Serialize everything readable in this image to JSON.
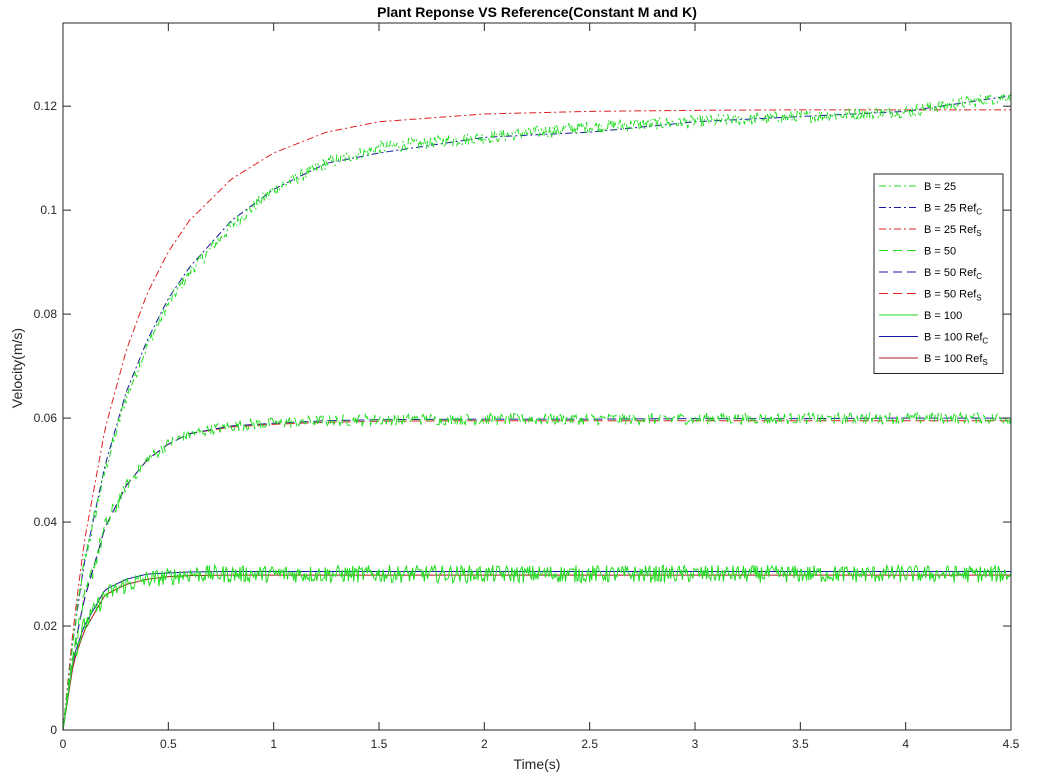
{
  "chart_data": {
    "type": "line",
    "title": "Plant Reponse VS Reference(Constant M and K)",
    "xlabel": "Time(s)",
    "ylabel": "Velocity(m/s)",
    "xlim": [
      0,
      4.5
    ],
    "ylim": [
      0,
      0.136
    ],
    "x_ticks": [
      {
        "value": 0,
        "label": "0"
      },
      {
        "value": 0.5,
        "label": "0.5"
      },
      {
        "value": 1,
        "label": "1"
      },
      {
        "value": 1.5,
        "label": "1.5"
      },
      {
        "value": 2,
        "label": "2"
      },
      {
        "value": 2.5,
        "label": "2.5"
      },
      {
        "value": 3,
        "label": "3"
      },
      {
        "value": 3.5,
        "label": "3.5"
      },
      {
        "value": 4,
        "label": "4"
      },
      {
        "value": 4.5,
        "label": "4.5"
      }
    ],
    "y_ticks": [
      {
        "value": 0,
        "label": "0"
      },
      {
        "value": 0.02,
        "label": "0.02"
      },
      {
        "value": 0.04,
        "label": "0.04"
      },
      {
        "value": 0.06,
        "label": "0.06"
      },
      {
        "value": 0.08,
        "label": "0.08"
      },
      {
        "value": 0.1,
        "label": "0.1"
      },
      {
        "value": 0.12,
        "label": "0.12"
      }
    ],
    "grid": false,
    "legend_position": "right",
    "x": [
      0,
      0.05,
      0.1,
      0.2,
      0.3,
      0.4,
      0.5,
      0.6,
      0.8,
      1.0,
      1.25,
      1.5,
      2.0,
      2.5,
      3.0,
      3.5,
      4.0,
      4.5
    ],
    "series": [
      {
        "name": "B = 25",
        "legend": {
          "text": "B = 25",
          "sub": ""
        },
        "color": "#22dd22",
        "dash": "7,3,2,3",
        "noisy": true,
        "values": [
          0,
          0.018,
          0.032,
          0.05,
          0.064,
          0.074,
          0.082,
          0.088,
          0.097,
          0.104,
          0.109,
          0.112,
          0.114,
          0.116,
          0.117,
          0.118,
          0.119,
          0.122
        ]
      },
      {
        "name": "B = 25 Ref_C",
        "legend": {
          "text": "B = 25 Ref",
          "sub": "C"
        },
        "color": "#1a1aa0",
        "dash": "7,3,2,3",
        "noisy": false,
        "values": [
          0,
          0.018,
          0.032,
          0.051,
          0.065,
          0.075,
          0.083,
          0.089,
          0.098,
          0.104,
          0.109,
          0.111,
          0.114,
          0.115,
          0.117,
          0.118,
          0.119,
          0.122
        ]
      },
      {
        "name": "B = 25 Ref_S",
        "legend": {
          "text": "B = 25 Ref",
          "sub": "S"
        },
        "color": "#dd2020",
        "dash": "7,3,2,3",
        "noisy": false,
        "values": [
          0,
          0.02,
          0.036,
          0.058,
          0.073,
          0.084,
          0.092,
          0.098,
          0.106,
          0.111,
          0.115,
          0.117,
          0.1185,
          0.119,
          0.1192,
          0.1193,
          0.1193,
          0.1193
        ]
      },
      {
        "name": "B = 50",
        "legend": {
          "text": "B = 50",
          "sub": ""
        },
        "color": "#22dd22",
        "dash": "9,5",
        "noisy": true,
        "values": [
          0,
          0.015,
          0.025,
          0.039,
          0.047,
          0.052,
          0.055,
          0.057,
          0.0585,
          0.059,
          0.0595,
          0.0597,
          0.0598,
          0.0598,
          0.0599,
          0.0599,
          0.06,
          0.06
        ]
      },
      {
        "name": "B = 50 Ref_C",
        "legend": {
          "text": "B = 50 Ref",
          "sub": "C"
        },
        "color": "#1a1aa0",
        "dash": "9,5",
        "noisy": false,
        "values": [
          0,
          0.015,
          0.025,
          0.039,
          0.047,
          0.052,
          0.055,
          0.057,
          0.0585,
          0.059,
          0.0595,
          0.0597,
          0.0598,
          0.0598,
          0.0599,
          0.0599,
          0.06,
          0.06
        ]
      },
      {
        "name": "B = 50 Ref_S",
        "legend": {
          "text": "B = 50 Ref",
          "sub": "S"
        },
        "color": "#dd2020",
        "dash": "9,5",
        "noisy": false,
        "values": [
          0,
          0.015,
          0.025,
          0.039,
          0.047,
          0.052,
          0.055,
          0.057,
          0.0583,
          0.0588,
          0.0592,
          0.0594,
          0.0595,
          0.0595,
          0.0595,
          0.0595,
          0.0595,
          0.0595
        ]
      },
      {
        "name": "B = 100",
        "legend": {
          "text": "B = 100",
          "sub": ""
        },
        "color": "#22dd22",
        "dash": "",
        "noisy": true,
        "values": [
          0,
          0.014,
          0.02,
          0.026,
          0.028,
          0.029,
          0.0295,
          0.03,
          0.03,
          0.03,
          0.03,
          0.03,
          0.03,
          0.03,
          0.03,
          0.03,
          0.03,
          0.03
        ]
      },
      {
        "name": "B = 100 Ref_C",
        "legend": {
          "text": "B = 100 Ref",
          "sub": "C"
        },
        "color": "#1a1aa0",
        "dash": "",
        "noisy": false,
        "values": [
          0,
          0.014,
          0.02,
          0.027,
          0.029,
          0.03,
          0.0302,
          0.0304,
          0.0305,
          0.0305,
          0.0305,
          0.0305,
          0.0305,
          0.0305,
          0.0305,
          0.0305,
          0.0305,
          0.0305
        ]
      },
      {
        "name": "B = 100 Ref_S",
        "legend": {
          "text": "B = 100 Ref",
          "sub": "S"
        },
        "color": "#aa1a1a",
        "dash": "",
        "noisy": false,
        "values": [
          0,
          0.013,
          0.019,
          0.026,
          0.028,
          0.029,
          0.0295,
          0.0297,
          0.0298,
          0.0298,
          0.0298,
          0.0298,
          0.0298,
          0.0298,
          0.0298,
          0.0298,
          0.0298,
          0.0298
        ]
      }
    ]
  }
}
